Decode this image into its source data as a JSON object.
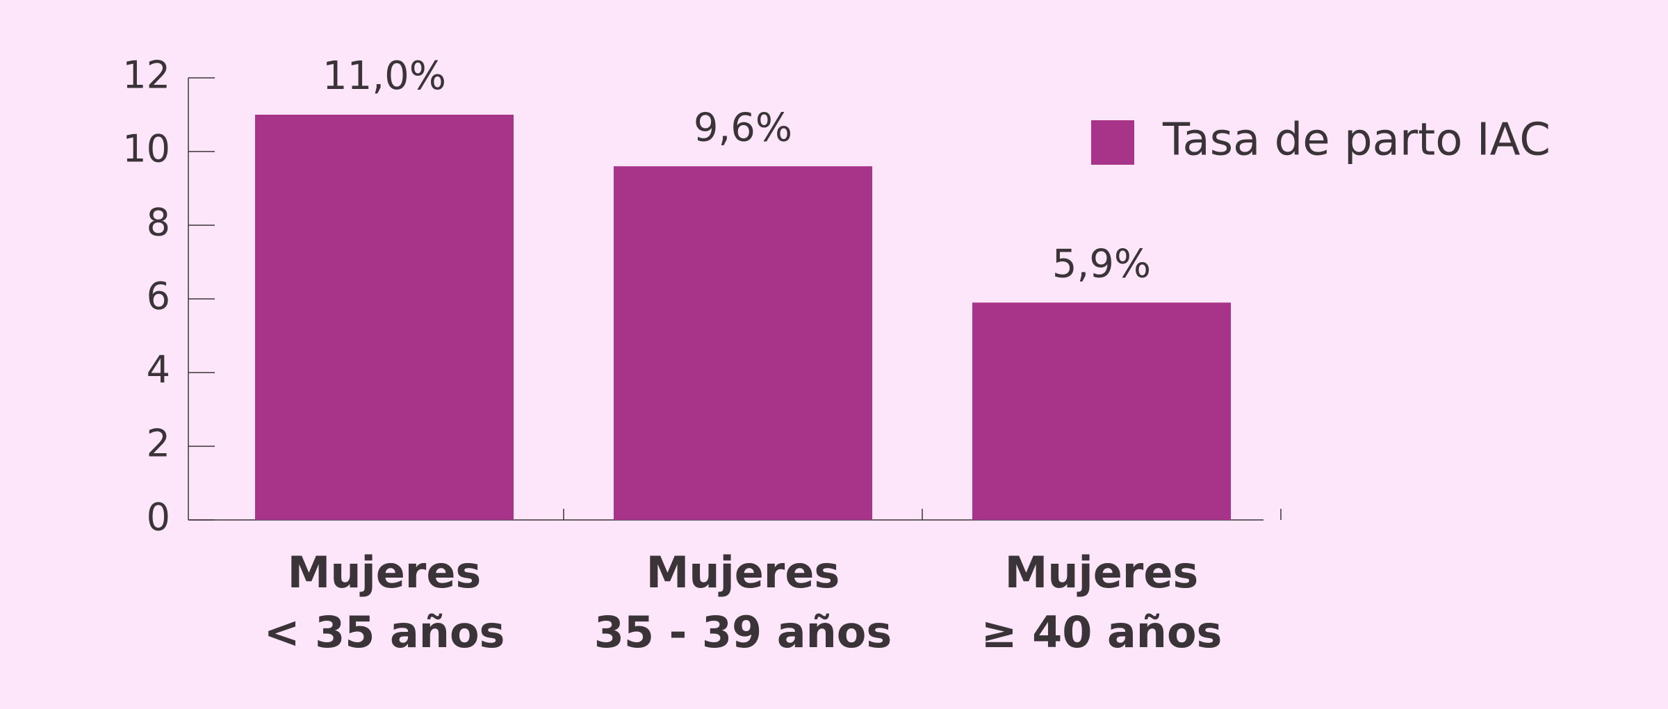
{
  "chart_data": {
    "type": "bar",
    "categories": [
      [
        "Mujeres",
        "< 35 años"
      ],
      [
        "Mujeres",
        "35 - 39 años"
      ],
      [
        "Mujeres",
        "≥ 40 años"
      ]
    ],
    "series": [
      {
        "name": "Tasa de parto IAC",
        "color": "#a8348a",
        "values": [
          11.0,
          9.6,
          5.9
        ],
        "value_labels": [
          "11,0%",
          "9,6%",
          "5,9%"
        ]
      }
    ],
    "ylim": [
      0,
      12
    ],
    "yticks": [
      0,
      2,
      4,
      6,
      8,
      10,
      12
    ],
    "legend": "upper right"
  }
}
